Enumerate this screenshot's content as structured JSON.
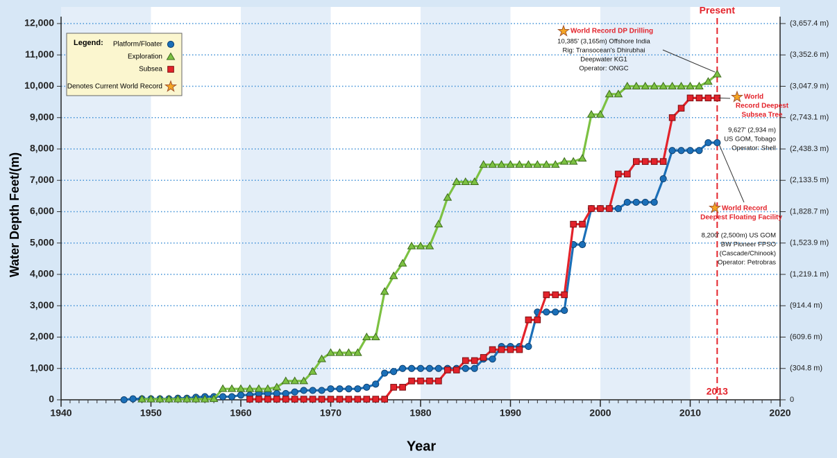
{
  "chart_data": {
    "type": "line",
    "xlabel": "Year",
    "ylabel": "Water Depth Feet/(m)",
    "legend_title": "Legend:",
    "record_note": "Denotes Current World Record",
    "legend": "upper left",
    "grid": true,
    "x": [
      1947,
      1948,
      1949,
      1950,
      1951,
      1952,
      1953,
      1954,
      1955,
      1956,
      1957,
      1958,
      1959,
      1960,
      1961,
      1962,
      1963,
      1964,
      1965,
      1966,
      1967,
      1968,
      1969,
      1970,
      1971,
      1972,
      1973,
      1974,
      1975,
      1976,
      1977,
      1978,
      1979,
      1980,
      1981,
      1982,
      1983,
      1984,
      1985,
      1986,
      1987,
      1988,
      1989,
      1990,
      1991,
      1992,
      1993,
      1994,
      1995,
      1996,
      1997,
      1998,
      1999,
      2000,
      2001,
      2002,
      2003,
      2004,
      2005,
      2006,
      2007,
      2008,
      2009,
      2010,
      2011,
      2012,
      2013
    ],
    "series": [
      {
        "name": "Platform/Floater",
        "color": "#1b6fb8",
        "marker": "circle",
        "values": [
          0,
          30,
          30,
          30,
          30,
          30,
          50,
          50,
          80,
          100,
          100,
          100,
          100,
          150,
          150,
          200,
          200,
          200,
          200,
          250,
          300,
          300,
          300,
          350,
          350,
          350,
          350,
          400,
          500,
          850,
          900,
          1000,
          1000,
          1000,
          1000,
          1000,
          1000,
          1000,
          1000,
          1000,
          1300,
          1300,
          1700,
          1700,
          1700,
          1700,
          2800,
          2800,
          2800,
          2850,
          4950,
          4950,
          6100,
          6100,
          6100,
          6100,
          6300,
          6300,
          6300,
          6300,
          7050,
          7950,
          7950,
          7950,
          7950,
          8200,
          8200
        ]
      },
      {
        "name": "Exploration",
        "color": "#7cc142",
        "marker": "triangle",
        "values": [
          null,
          null,
          20,
          20,
          20,
          20,
          20,
          20,
          20,
          20,
          30,
          350,
          350,
          350,
          350,
          350,
          350,
          400,
          600,
          600,
          600,
          900,
          1300,
          1500,
          1500,
          1500,
          1500,
          2000,
          2000,
          3450,
          3950,
          4350,
          4900,
          4900,
          4900,
          5600,
          6450,
          6950,
          6950,
          6950,
          7500,
          7500,
          7500,
          7500,
          7500,
          7500,
          7500,
          7500,
          7500,
          7600,
          7600,
          7700,
          9100,
          9100,
          9750,
          9750,
          10000,
          10000,
          10000,
          10000,
          10000,
          10000,
          10000,
          10000,
          10000,
          10150,
          10385
        ]
      },
      {
        "name": "Subsea",
        "color": "#e3232b",
        "marker": "square",
        "values": [
          null,
          null,
          null,
          null,
          null,
          null,
          null,
          null,
          null,
          null,
          null,
          null,
          null,
          null,
          20,
          20,
          20,
          20,
          20,
          20,
          20,
          20,
          20,
          20,
          20,
          20,
          20,
          20,
          20,
          20,
          400,
          400,
          600,
          600,
          600,
          600,
          950,
          950,
          1250,
          1250,
          1350,
          1600,
          1600,
          1600,
          1600,
          2550,
          2550,
          3350,
          3350,
          3350,
          5600,
          5600,
          6100,
          6100,
          6100,
          7200,
          7200,
          7600,
          7600,
          7600,
          7600,
          9000,
          9300,
          9627,
          9627,
          9627,
          9627
        ]
      }
    ],
    "xlim": [
      1940,
      2020
    ],
    "xticks": [
      1940,
      1950,
      1960,
      1970,
      1980,
      1990,
      2000,
      2010,
      2020
    ],
    "ylim": [
      0,
      12000
    ],
    "yticks": [
      0,
      {
        "value": 1000,
        "label": "1,000"
      },
      {
        "value": 2000,
        "label": "2,000"
      },
      {
        "value": 3000,
        "label": "3,000"
      },
      {
        "value": 4000,
        "label": "4,000"
      },
      {
        "value": 5000,
        "label": "5,000"
      },
      {
        "value": 6000,
        "label": "6,000"
      },
      {
        "value": 7000,
        "label": "7,000"
      },
      {
        "value": 8000,
        "label": "8,000"
      },
      {
        "value": 9000,
        "label": "9,000"
      },
      {
        "value": 10000,
        "label": "10,000"
      },
      {
        "value": 11000,
        "label": "11,000"
      },
      {
        "value": 12000,
        "label": "12,000"
      }
    ],
    "y2lim": [
      0,
      3657.4
    ],
    "y2ticks": [
      0,
      {
        "value": 304.8,
        "label": "(304.8 m)"
      },
      {
        "value": 609.6,
        "label": "(609.6 m)"
      },
      {
        "value": 914.4,
        "label": "(914.4 m)"
      },
      {
        "value": 1219.1,
        "label": "(1,219.1 m)"
      },
      {
        "value": 1523.9,
        "label": "(1,523.9 m)"
      },
      {
        "value": 1828.7,
        "label": "(1,828.7 m)"
      },
      {
        "value": 2133.5,
        "label": "(2,133.5 m)"
      },
      {
        "value": 2438.3,
        "label": "(2,438.3 m)"
      },
      {
        "value": 2743.1,
        "label": "(2,743.1 m)"
      },
      {
        "value": 3047.9,
        "label": "(3,047.9 m)"
      },
      {
        "value": 3352.6,
        "label": "(3,352.6 m)"
      },
      {
        "value": 3657.4,
        "label": "(3,657.4 m)"
      }
    ],
    "present": {
      "label": "Present",
      "x": 2013
    },
    "annotations": [
      {
        "title": [
          "World Record DP Drilling"
        ],
        "lines": [
          "10,385' (3,165m) Offshore India",
          "Rig: Transocean's Dhirubhai",
          "Deepwater KG1",
          "Operator: ONGC"
        ]
      },
      {
        "title": [
          "World",
          "Record Deepest",
          "Subsea Tree"
        ],
        "lines": [
          "9,627' (2,934 m)",
          "US GOM, Tobago",
          "Operator: Shell"
        ]
      },
      {
        "title": [
          "World Record",
          "Deepest Floating Facility"
        ],
        "lines": [
          "8,200' (2,500m) US GOM",
          "BW Pioneer FPSO",
          "(Cascade/Chinook)",
          "Operator: Petrobras"
        ]
      }
    ]
  }
}
